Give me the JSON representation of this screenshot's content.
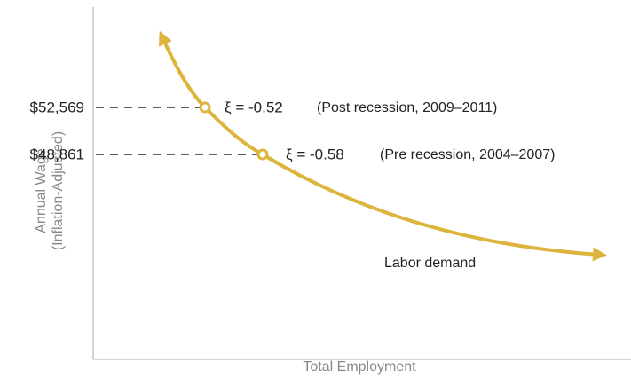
{
  "axes": {
    "y_label": [
      "Annual Wage",
      "(Inflation-Adjusted)"
    ],
    "x_label": "Total Employment"
  },
  "curve": {
    "label": "Labor demand"
  },
  "points": [
    {
      "wage": "$52,569",
      "elasticity": "ξ = -0.52",
      "period": "(Post recession, 2009–2011)"
    },
    {
      "wage": "$48,861",
      "elasticity": "ξ = -0.58",
      "period": "(Pre recession, 2004–2007)"
    }
  ]
}
